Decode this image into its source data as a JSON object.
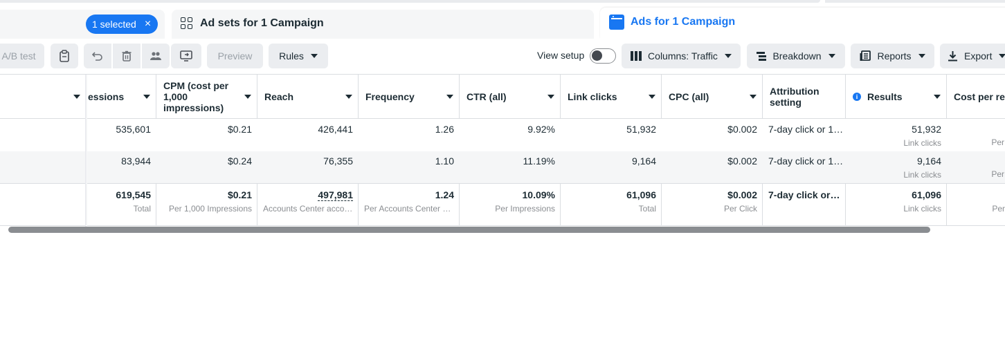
{
  "tabs": {
    "campaigns": {
      "selected_label": "1 selected",
      "close_icon": "close-icon"
    },
    "adsets": {
      "label": "Ad sets for 1 Campaign",
      "icon": "grid-icon"
    },
    "ads": {
      "label": "Ads for 1 Campaign",
      "icon": "ads-window-icon"
    }
  },
  "toolbar": {
    "ab_test_label": "A/B test",
    "preview_label": "Preview",
    "rules_label": "Rules",
    "view_setup_label": "View setup",
    "columns_label": "Columns: Traffic",
    "breakdown_label": "Breakdown",
    "reports_label": "Reports",
    "export_label": "Export"
  },
  "table": {
    "headers": {
      "impressions": "essions",
      "cpm": "CPM (cost per 1,000 impressions)",
      "reach": "Reach",
      "frequency": "Frequency",
      "ctr": "CTR (all)",
      "link_clicks": "Link clicks",
      "cpc": "CPC (all)",
      "attribution": "Attribution setting",
      "results": "Results",
      "cost_per_result": "Cost per res"
    },
    "rows": [
      {
        "impressions": "535,601",
        "cpm": "$0.21",
        "reach": "426,441",
        "frequency": "1.26",
        "ctr": "9.92%",
        "link_clicks": "51,932",
        "cpc": "$0.002",
        "attribution": "7-day click or 1…",
        "results": "51,932",
        "results_sub": "Link clicks",
        "cost_sub": "Per"
      },
      {
        "impressions": "83,944",
        "cpm": "$0.24",
        "reach": "76,355",
        "frequency": "1.10",
        "ctr": "11.19%",
        "link_clicks": "9,164",
        "cpc": "$0.002",
        "attribution": "7-day click or 1…",
        "results": "9,164",
        "results_sub": "Link clicks",
        "cost_sub": "Per"
      }
    ],
    "totals": {
      "impressions": "619,545",
      "impressions_sub": "Total",
      "cpm": "$0.21",
      "cpm_sub": "Per 1,000 Impressions",
      "reach": "497,981",
      "reach_sub": "Accounts Center acco…",
      "frequency": "1.24",
      "frequency_sub": "Per Accounts Center a…",
      "ctr": "10.09%",
      "ctr_sub": "Per Impressions",
      "link_clicks": "61,096",
      "link_clicks_sub": "Total",
      "cpc": "$0.002",
      "cpc_sub": "Per Click",
      "attribution": "7-day click or …",
      "results": "61,096",
      "results_sub": "Link clicks",
      "cost_sub": "Per"
    }
  }
}
